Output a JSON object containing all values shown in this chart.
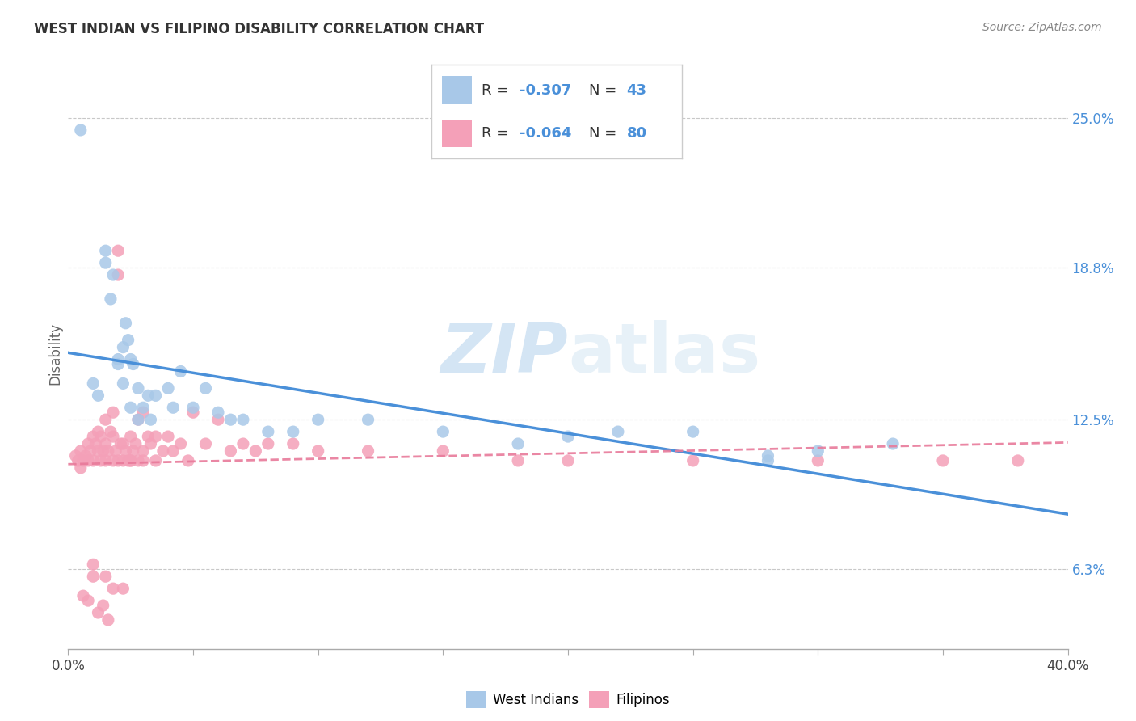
{
  "title": "WEST INDIAN VS FILIPINO DISABILITY CORRELATION CHART",
  "source": "Source: ZipAtlas.com",
  "ylabel": "Disability",
  "yticks": [
    0.063,
    0.125,
    0.188,
    0.25
  ],
  "ytick_labels": [
    "6.3%",
    "12.5%",
    "18.8%",
    "25.0%"
  ],
  "xmin": 0.0,
  "xmax": 0.4,
  "ymin": 0.03,
  "ymax": 0.275,
  "west_indian_color": "#a8c8e8",
  "filipino_color": "#f4a0b8",
  "west_indian_line_color": "#4a90d9",
  "filipino_line_color": "#e87a9a",
  "background_color": "#ffffff",
  "grid_color": "#c8c8c8",
  "watermark_color": "#cce0f0",
  "west_indian_R": -0.307,
  "west_indian_N": 43,
  "filipino_R": -0.064,
  "filipino_N": 80,
  "wi_x": [
    0.005,
    0.01,
    0.012,
    0.015,
    0.015,
    0.017,
    0.018,
    0.02,
    0.02,
    0.022,
    0.022,
    0.023,
    0.024,
    0.025,
    0.025,
    0.026,
    0.028,
    0.028,
    0.03,
    0.032,
    0.033,
    0.035,
    0.04,
    0.042,
    0.045,
    0.05,
    0.055,
    0.06,
    0.065,
    0.07,
    0.08,
    0.09,
    0.1,
    0.12,
    0.15,
    0.18,
    0.2,
    0.22,
    0.25,
    0.28,
    0.3,
    0.33,
    0.28
  ],
  "wi_y": [
    0.245,
    0.14,
    0.135,
    0.195,
    0.19,
    0.175,
    0.185,
    0.15,
    0.148,
    0.14,
    0.155,
    0.165,
    0.158,
    0.13,
    0.15,
    0.148,
    0.125,
    0.138,
    0.13,
    0.135,
    0.125,
    0.135,
    0.138,
    0.13,
    0.145,
    0.13,
    0.138,
    0.128,
    0.125,
    0.125,
    0.12,
    0.12,
    0.125,
    0.125,
    0.12,
    0.115,
    0.118,
    0.12,
    0.12,
    0.11,
    0.112,
    0.115,
    0.108
  ],
  "fi_x": [
    0.003,
    0.004,
    0.005,
    0.005,
    0.006,
    0.007,
    0.008,
    0.008,
    0.009,
    0.01,
    0.01,
    0.011,
    0.012,
    0.012,
    0.013,
    0.013,
    0.014,
    0.015,
    0.015,
    0.015,
    0.016,
    0.017,
    0.018,
    0.018,
    0.018,
    0.019,
    0.02,
    0.02,
    0.021,
    0.022,
    0.022,
    0.023,
    0.024,
    0.025,
    0.025,
    0.026,
    0.027,
    0.028,
    0.028,
    0.03,
    0.03,
    0.032,
    0.033,
    0.035,
    0.035,
    0.038,
    0.04,
    0.042,
    0.045,
    0.048,
    0.05,
    0.055,
    0.06,
    0.065,
    0.07,
    0.075,
    0.08,
    0.09,
    0.1,
    0.12,
    0.15,
    0.18,
    0.2,
    0.25,
    0.3,
    0.35,
    0.38,
    0.02,
    0.025,
    0.03,
    0.01,
    0.015,
    0.018,
    0.012,
    0.022,
    0.016,
    0.014,
    0.008,
    0.006,
    0.01
  ],
  "fi_y": [
    0.11,
    0.108,
    0.112,
    0.105,
    0.108,
    0.11,
    0.115,
    0.108,
    0.112,
    0.118,
    0.108,
    0.115,
    0.12,
    0.112,
    0.118,
    0.108,
    0.112,
    0.125,
    0.115,
    0.108,
    0.112,
    0.12,
    0.128,
    0.118,
    0.108,
    0.112,
    0.195,
    0.185,
    0.115,
    0.115,
    0.108,
    0.112,
    0.108,
    0.118,
    0.108,
    0.112,
    0.115,
    0.125,
    0.108,
    0.128,
    0.112,
    0.118,
    0.115,
    0.118,
    0.108,
    0.112,
    0.118,
    0.112,
    0.115,
    0.108,
    0.128,
    0.115,
    0.125,
    0.112,
    0.115,
    0.112,
    0.115,
    0.115,
    0.112,
    0.112,
    0.112,
    0.108,
    0.108,
    0.108,
    0.108,
    0.108,
    0.108,
    0.108,
    0.108,
    0.108,
    0.065,
    0.06,
    0.055,
    0.045,
    0.055,
    0.042,
    0.048,
    0.05,
    0.052,
    0.06
  ]
}
